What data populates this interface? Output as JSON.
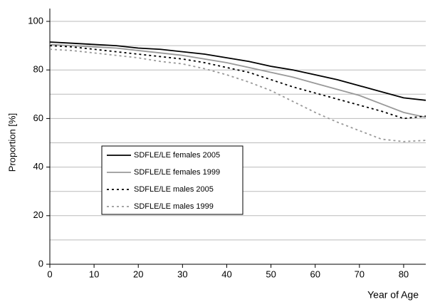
{
  "chart_data": {
    "type": "line",
    "xlabel": "Year of Age",
    "ylabel": "Proportion [%]",
    "x": [
      0,
      5,
      10,
      15,
      20,
      25,
      30,
      35,
      40,
      45,
      50,
      55,
      60,
      65,
      70,
      75,
      80,
      85
    ],
    "series": [
      {
        "name": "SDFLE/LE females 2005",
        "color": "#000000",
        "dash": "solid",
        "values": [
          91.5,
          91,
          90.5,
          90,
          89,
          88.5,
          87.5,
          86.5,
          85,
          83.5,
          81.5,
          80,
          78,
          76,
          73.5,
          71,
          68.5,
          67.5
        ]
      },
      {
        "name": "SDFLE/LE females 1999",
        "color": "#999999",
        "dash": "solid",
        "values": [
          90.5,
          90,
          89.5,
          89,
          88,
          87,
          86,
          84.5,
          83,
          81,
          79,
          77,
          74.5,
          72,
          69.5,
          66,
          62.5,
          60.5
        ]
      },
      {
        "name": "SDFLE/LE males 2005",
        "color": "#000000",
        "dash": "dashed",
        "values": [
          90,
          89.5,
          88.5,
          87.5,
          86.5,
          85.5,
          84.5,
          83,
          81,
          79,
          76,
          73,
          70.5,
          68,
          65.5,
          63,
          60,
          61
        ]
      },
      {
        "name": "SDFLE/LE males 1999",
        "color": "#999999",
        "dash": "dashed",
        "values": [
          88.5,
          88,
          87,
          86,
          85,
          83.5,
          82.5,
          80.5,
          78,
          75,
          71.5,
          67,
          62.5,
          58.5,
          55,
          51.5,
          50.5,
          51
        ]
      }
    ],
    "xlim": [
      0,
      85
    ],
    "xticks": [
      0,
      10,
      20,
      30,
      40,
      50,
      60,
      70,
      80
    ],
    "ylim": [
      0,
      100
    ],
    "yticks": [
      0,
      20,
      40,
      60,
      80,
      100
    ],
    "y_minor_ticks": [
      10,
      30,
      50,
      70,
      90
    ],
    "grid": true
  }
}
